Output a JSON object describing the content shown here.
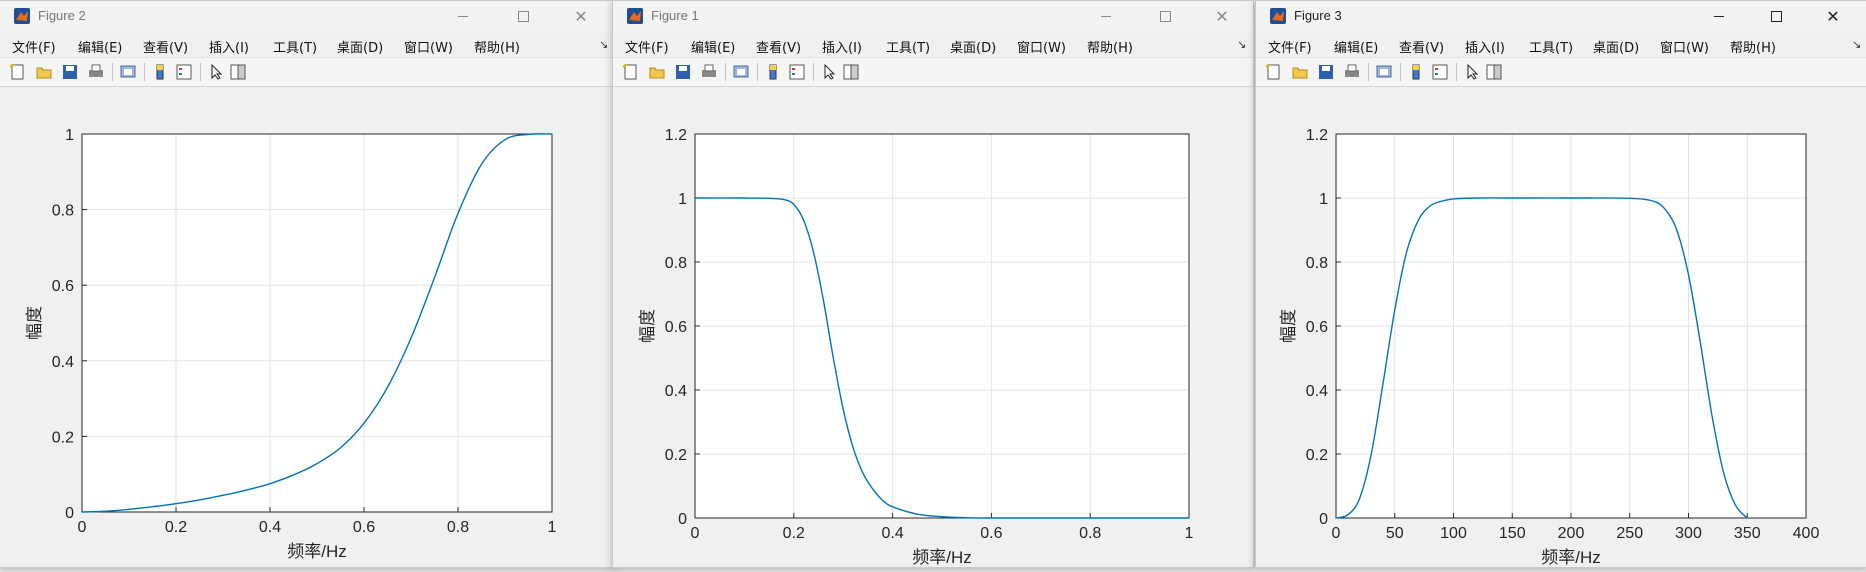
{
  "windows": [
    {
      "id": "figure2",
      "title": "Figure 2",
      "menu": [
        "文件(F)",
        "编辑(E)",
        "查看(V)",
        "插入(I)",
        "工具(T)",
        "桌面(D)",
        "窗口(W)",
        "帮助(H)"
      ],
      "chart_data": {
        "type": "line",
        "xlabel": "频率/Hz",
        "ylabel": "幅度",
        "xlim": [
          0,
          1
        ],
        "ylim": [
          0,
          1
        ],
        "xticks": [
          "0",
          "0.2",
          "0.4",
          "0.6",
          "0.8",
          "1"
        ],
        "yticks": [
          "0",
          "0.2",
          "0.4",
          "0.6",
          "0.8",
          "1"
        ],
        "grid": true,
        "series_color": "#0072BD",
        "x": [
          0,
          0.05,
          0.1,
          0.15,
          0.2,
          0.25,
          0.3,
          0.35,
          0.4,
          0.45,
          0.5,
          0.55,
          0.6,
          0.65,
          0.7,
          0.75,
          0.8,
          0.85,
          0.9,
          0.95,
          1.0
        ],
        "y": [
          0,
          0.002,
          0.007,
          0.014,
          0.022,
          0.032,
          0.044,
          0.058,
          0.075,
          0.098,
          0.128,
          0.17,
          0.235,
          0.33,
          0.46,
          0.62,
          0.79,
          0.92,
          0.985,
          0.999,
          1.0
        ]
      }
    },
    {
      "id": "figure1",
      "title": "Figure 1",
      "menu": [
        "文件(F)",
        "编辑(E)",
        "查看(V)",
        "插入(I)",
        "工具(T)",
        "桌面(D)",
        "窗口(W)",
        "帮助(H)"
      ],
      "chart_data": {
        "type": "line",
        "xlabel": "频率/Hz",
        "ylabel": "幅度",
        "xlim": [
          0,
          1
        ],
        "ylim": [
          0,
          1.2
        ],
        "xticks": [
          "0",
          "0.2",
          "0.4",
          "0.6",
          "0.8",
          "1"
        ],
        "yticks": [
          "0",
          "0.2",
          "0.4",
          "0.6",
          "0.8",
          "1",
          "1.2"
        ],
        "grid": true,
        "series_color": "#0072BD",
        "x": [
          0,
          0.1,
          0.15,
          0.18,
          0.2,
          0.22,
          0.24,
          0.26,
          0.28,
          0.3,
          0.32,
          0.34,
          0.36,
          0.38,
          0.4,
          0.45,
          0.5,
          0.55,
          0.6,
          0.8,
          1.0
        ],
        "y": [
          1,
          1,
          0.999,
          0.995,
          0.98,
          0.93,
          0.83,
          0.68,
          0.5,
          0.34,
          0.22,
          0.14,
          0.09,
          0.055,
          0.035,
          0.012,
          0.004,
          0.001,
          0,
          0,
          0
        ]
      }
    },
    {
      "id": "figure3",
      "title": "Figure 3",
      "menu": [
        "文件(F)",
        "编辑(E)",
        "查看(V)",
        "插入(I)",
        "工具(T)",
        "桌面(D)",
        "窗口(W)",
        "帮助(H)"
      ],
      "chart_data": {
        "type": "line",
        "xlabel": "频率/Hz",
        "ylabel": "幅度",
        "xlim": [
          0,
          400
        ],
        "ylim": [
          0,
          1.2
        ],
        "xticks": [
          "0",
          "50",
          "100",
          "150",
          "200",
          "250",
          "300",
          "350",
          "400"
        ],
        "yticks": [
          "0",
          "0.2",
          "0.4",
          "0.6",
          "0.8",
          "1",
          "1.2"
        ],
        "grid": true,
        "series_color": "#0072BD",
        "x": [
          0,
          10,
          20,
          30,
          40,
          50,
          60,
          70,
          80,
          90,
          100,
          120,
          150,
          200,
          250,
          270,
          280,
          290,
          300,
          310,
          320,
          330,
          340,
          350
        ],
        "y": [
          0,
          0.01,
          0.06,
          0.2,
          0.42,
          0.65,
          0.83,
          0.93,
          0.975,
          0.99,
          0.997,
          1,
          1,
          1,
          0.999,
          0.99,
          0.965,
          0.9,
          0.76,
          0.55,
          0.32,
          0.14,
          0.04,
          0
        ]
      }
    }
  ]
}
